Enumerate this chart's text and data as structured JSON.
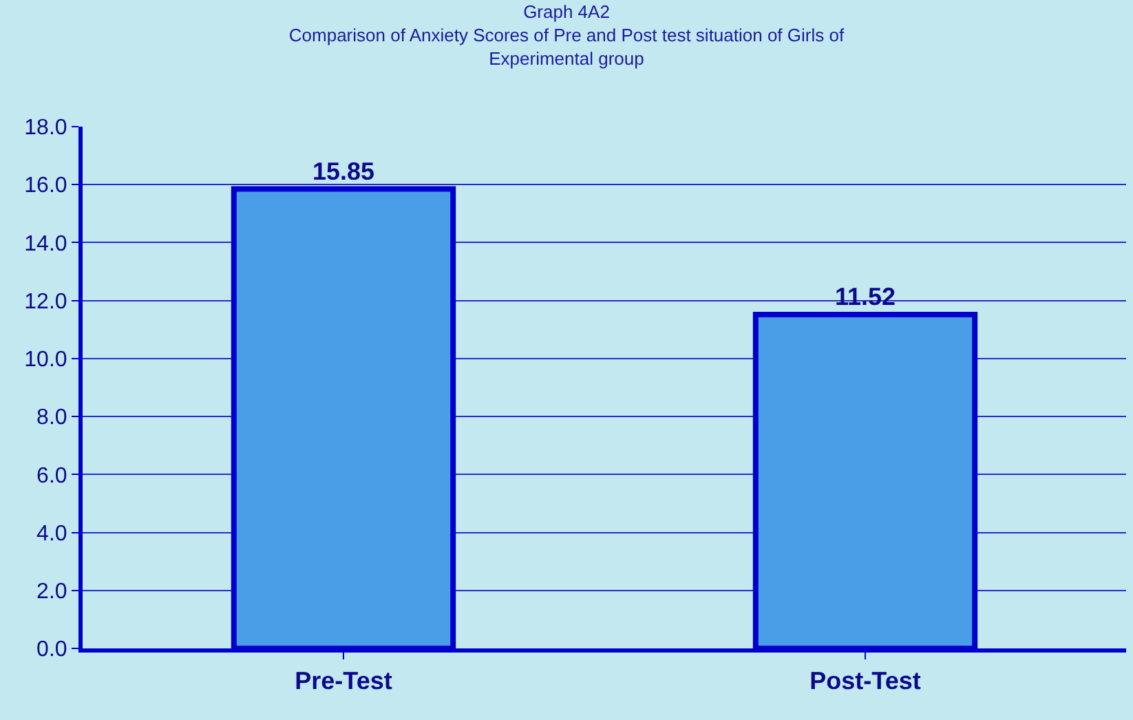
{
  "chart_data": {
    "type": "bar",
    "title": "Graph 4A2\nComparison of Anxiety Scores of Pre and Post test situation of Girls of\nExperimental group",
    "categories": [
      "Pre-Test",
      "Post-Test"
    ],
    "values": [
      15.85,
      11.52
    ],
    "color": "#4a9ee8",
    "data_labels": true,
    "ylim": [
      0,
      18
    ],
    "yticks": [
      {
        "value": 0,
        "label": "0.0"
      },
      {
        "value": 2,
        "label": "2.0"
      },
      {
        "value": 4,
        "label": "4.0"
      },
      {
        "value": 6,
        "label": "6.0"
      },
      {
        "value": 8,
        "label": "8.0"
      },
      {
        "value": 10,
        "label": "10.0"
      },
      {
        "value": 12,
        "label": "12.0"
      },
      {
        "value": 14,
        "label": "14.0"
      },
      {
        "value": 16,
        "label": "16.0"
      },
      {
        "value": 18,
        "label": "18.0"
      }
    ],
    "grid": "y",
    "legend": false
  }
}
